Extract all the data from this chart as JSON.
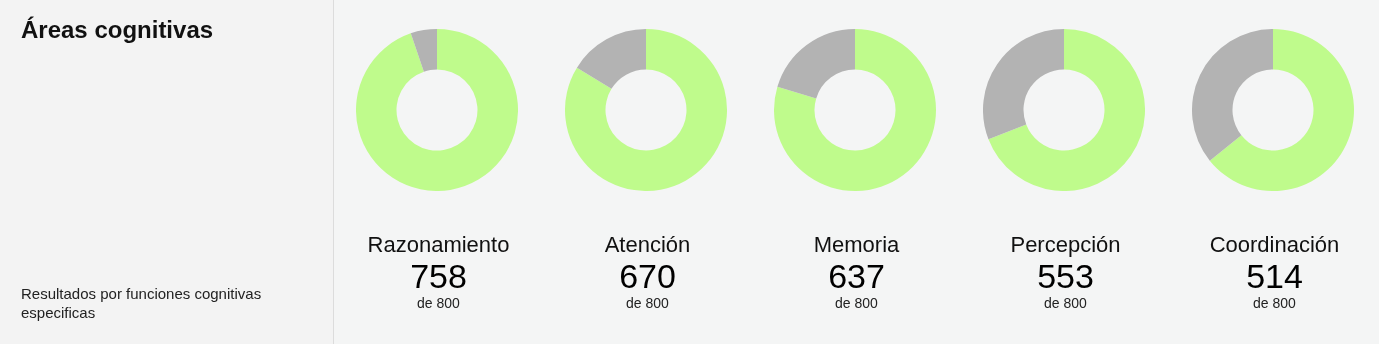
{
  "chart_data": [
    {
      "type": "other",
      "title": "Áreas cognitivas",
      "subtitle": "Resultados por funciones cognitivas especificas"
    },
    {
      "type": "donut",
      "title": "Razonamiento",
      "categories": [
        null,
        null
      ],
      "values": [
        758,
        42
      ],
      "colors": [
        "#bffb8c",
        "#b3b3b3"
      ],
      "value_labels": [
        "758",
        null
      ],
      "annotations": [
        "de 800"
      ]
    },
    {
      "type": "donut",
      "title": "Atención",
      "categories": [
        null,
        null
      ],
      "values": [
        670,
        130
      ],
      "colors": [
        "#bffb8c",
        "#b3b3b3"
      ],
      "value_labels": [
        "670",
        null
      ],
      "annotations": [
        "de 800"
      ]
    },
    {
      "type": "donut",
      "title": "Memoria",
      "categories": [
        null,
        null
      ],
      "values": [
        637,
        163
      ],
      "colors": [
        "#bffb8c",
        "#b3b3b3"
      ],
      "value_labels": [
        "637",
        null
      ],
      "annotations": [
        "de 800"
      ]
    },
    {
      "type": "donut",
      "title": "Percepción",
      "categories": [
        null,
        null
      ],
      "values": [
        553,
        247
      ],
      "colors": [
        "#bffb8c",
        "#b3b3b3"
      ],
      "value_labels": [
        "553",
        null
      ],
      "annotations": [
        "de 800"
      ]
    },
    {
      "type": "donut",
      "title": "Coordinación",
      "categories": [
        null,
        null
      ],
      "values": [
        514,
        286
      ],
      "colors": [
        "#bffb8c",
        "#b3b3b3"
      ],
      "value_labels": [
        "514",
        null
      ],
      "annotations": [
        "de 800"
      ]
    }
  ]
}
